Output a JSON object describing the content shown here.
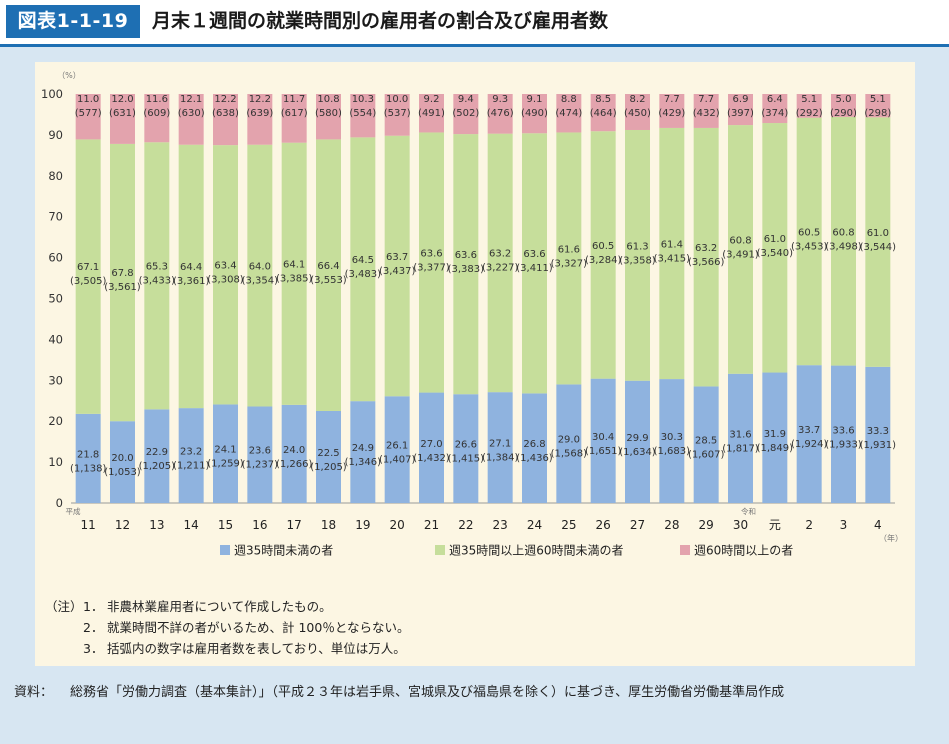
{
  "header": {
    "figure_label": "図表1-1-19",
    "title": "月末１週間の就業時間別の雇用者の割合及び雇用者数"
  },
  "chart_data": {
    "type": "bar",
    "stacked": true,
    "y_unit": "（%）",
    "x_unit": "（年）",
    "era_labels": [
      "平成",
      "令和"
    ],
    "ylim": [
      0,
      100
    ],
    "yticks": [
      0,
      10,
      20,
      30,
      40,
      50,
      60,
      70,
      80,
      90,
      100
    ],
    "categories": [
      "11",
      "12",
      "13",
      "14",
      "15",
      "16",
      "17",
      "18",
      "19",
      "20",
      "21",
      "22",
      "23",
      "24",
      "25",
      "26",
      "27",
      "28",
      "29",
      "30",
      "元",
      "2",
      "3",
      "4"
    ],
    "series": [
      {
        "name": "週35時間未満の者",
        "color": "#8fb3df",
        "values": [
          21.8,
          20.0,
          22.9,
          23.2,
          24.1,
          23.6,
          24.0,
          22.5,
          24.9,
          26.1,
          27.0,
          26.6,
          27.1,
          26.8,
          29.0,
          30.4,
          29.9,
          30.3,
          28.5,
          31.6,
          31.9,
          33.7,
          33.6,
          33.3
        ],
        "labels": [
          "21.8",
          "20.0",
          "22.9",
          "23.2",
          "24.1",
          "23.6",
          "24.0",
          "22.5",
          "24.9",
          "26.1",
          "27.0",
          "26.6",
          "27.1",
          "26.8",
          "29.0",
          "30.4",
          "29.9",
          "30.3",
          "28.5",
          "31.6",
          "31.9",
          "33.7",
          "33.6",
          "33.3"
        ],
        "counts": [
          "(1,138)",
          "(1,053)",
          "(1,205)",
          "(1,211)",
          "(1,259)",
          "(1,237)",
          "(1,266)",
          "(1,205)",
          "(1,346)",
          "(1,407)",
          "(1,432)",
          "(1,415)",
          "(1,384)",
          "(1,436)",
          "(1,568)",
          "(1,651)",
          "(1,634)",
          "(1,683)",
          "(1,607)",
          "(1,817)",
          "(1,849)",
          "(1,924)",
          "(1,933)",
          "(1,931)"
        ]
      },
      {
        "name": "週35時間以上週60時間未満の者",
        "color": "#c6de9b",
        "values": [
          67.1,
          67.8,
          65.3,
          64.4,
          63.4,
          64.0,
          64.1,
          66.4,
          64.5,
          63.7,
          63.6,
          63.6,
          63.2,
          63.6,
          61.6,
          60.5,
          61.3,
          61.4,
          63.2,
          60.8,
          61.0,
          60.5,
          60.8,
          61.0
        ],
        "labels": [
          "67.1",
          "67.8",
          "65.3",
          "64.4",
          "63.4",
          "64.0",
          "64.1",
          "66.4",
          "64.5",
          "63.7",
          "63.6",
          "63.6",
          "63.2",
          "63.6",
          "61.6",
          "60.5",
          "61.3",
          "61.4",
          "63.2",
          "60.8",
          "61.0",
          "60.5",
          "60.8",
          "61.0"
        ],
        "counts": [
          "(3,505)",
          "(3,561)",
          "(3,433)",
          "(3,361)",
          "(3,308)",
          "(3,354)",
          "(3,385)",
          "(3,553)",
          "(3,483)",
          "(3,437)",
          "(3,377)",
          "(3,383)",
          "(3,227)",
          "(3,411)",
          "(3,327)",
          "(3,284)",
          "(3,358)",
          "(3,415)",
          "(3,566)",
          "(3,491)",
          "(3,540)",
          "(3,453)",
          "(3,498)",
          "(3,544)"
        ]
      },
      {
        "name": "週60時間以上の者",
        "color": "#e3a3ad",
        "values": [
          11.0,
          12.0,
          11.6,
          12.1,
          12.2,
          12.2,
          11.7,
          10.8,
          10.3,
          10.0,
          9.2,
          9.4,
          9.3,
          9.1,
          8.8,
          8.5,
          8.2,
          7.7,
          7.7,
          6.9,
          6.4,
          5.1,
          5.0,
          5.1
        ],
        "labels": [
          "11.0",
          "12.0",
          "11.6",
          "12.1",
          "12.2",
          "12.2",
          "11.7",
          "10.8",
          "10.3",
          "10.0",
          "9.2",
          "9.4",
          "9.3",
          "9.1",
          "8.8",
          "8.5",
          "8.2",
          "7.7",
          "7.7",
          "6.9",
          "6.4",
          "5.1",
          "5.0",
          "5.1"
        ],
        "counts": [
          "(577)",
          "(631)",
          "(609)",
          "(630)",
          "(638)",
          "(639)",
          "(617)",
          "(580)",
          "(554)",
          "(537)",
          "(491)",
          "(502)",
          "(476)",
          "(490)",
          "(474)",
          "(464)",
          "(450)",
          "(429)",
          "(432)",
          "(397)",
          "(374)",
          "(292)",
          "(290)",
          "(298)"
        ]
      }
    ]
  },
  "notes": {
    "prefix": "（注）",
    "items": [
      {
        "num": "1．",
        "text": "非農林業雇用者について作成したもの。"
      },
      {
        "num": "2．",
        "text": "就業時間不詳の者がいるため、計 100％とならない。"
      },
      {
        "num": "3．",
        "text": "括弧内の数字は雇用者数を表しており、単位は万人。"
      }
    ]
  },
  "source": {
    "label": "資料：",
    "text": "総務省「労働力調査（基本集計）」（平成２３年は岩手県、宮城県及び福島県を除く）に基づき、厚生労働省労働基準局作成"
  }
}
